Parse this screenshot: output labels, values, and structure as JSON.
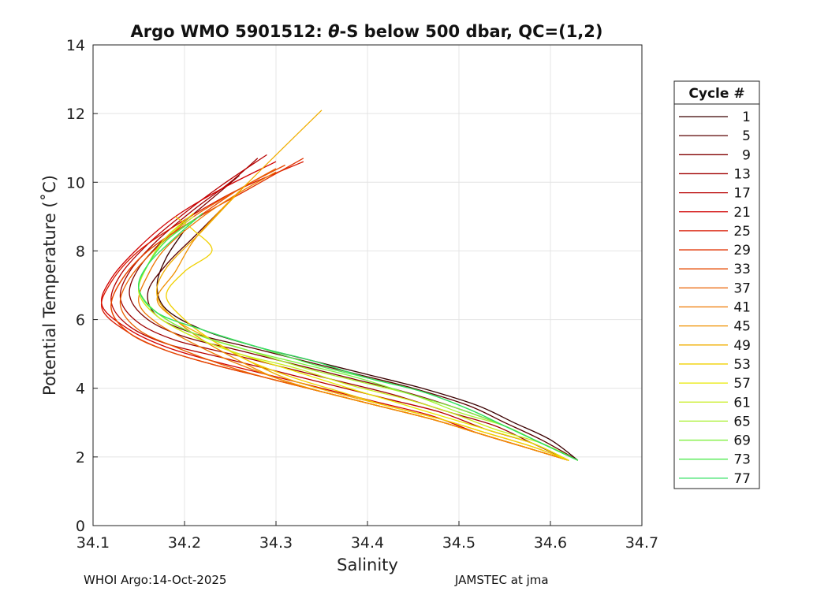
{
  "chart_data": {
    "type": "line",
    "title_prefix": "Argo WMO 5901512: ",
    "title_theta": "θ",
    "title_suffix": "-S below 500 dbar,  QC=(1,2)",
    "xlabel": "Salinity",
    "ylabel": "Potential Temperature (˚C)",
    "xlim": [
      34.1,
      34.7
    ],
    "ylim": [
      0,
      14
    ],
    "xticks": [
      "34.1",
      "34.2",
      "34.3",
      "34.4",
      "34.5",
      "34.6",
      "34.7"
    ],
    "yticks": [
      "0",
      "2",
      "4",
      "6",
      "8",
      "10",
      "12",
      "14"
    ],
    "grid": true,
    "legend": {
      "title": "Cycle #",
      "placement": "outside-right",
      "entries": [
        "1",
        "5",
        "9",
        "13",
        "17",
        "21",
        "25",
        "29",
        "33",
        "37",
        "41",
        "45",
        "49",
        "53",
        "57",
        "61",
        "65",
        "69",
        "73",
        "77"
      ],
      "colors": [
        "#3a0000",
        "#5a0000",
        "#800000",
        "#a00000",
        "#b80000",
        "#d10000",
        "#d81800",
        "#e03200",
        "#e64800",
        "#ea6000",
        "#ee7800",
        "#f09000",
        "#f0ae00",
        "#f0d000",
        "#e8e800",
        "#c8ee20",
        "#a8f030",
        "#80f040",
        "#50ea50",
        "#30e060"
      ]
    },
    "series": [
      {
        "name": "1",
        "s": [
          34.63,
          34.6,
          34.56,
          34.52,
          34.46,
          34.4,
          34.34,
          34.28,
          34.22,
          34.18,
          34.17,
          34.18,
          34.2
        ],
        "t": [
          1.9,
          2.5,
          3.0,
          3.5,
          4.0,
          4.4,
          4.8,
          5.2,
          5.7,
          6.3,
          7.0,
          7.8,
          8.6
        ]
      },
      {
        "name": "5",
        "s": [
          34.63,
          34.59,
          34.55,
          34.51,
          34.45,
          34.39,
          34.33,
          34.27,
          34.21,
          34.17,
          34.16,
          34.18,
          34.21,
          34.24
        ],
        "t": [
          1.9,
          2.5,
          3.0,
          3.5,
          4.0,
          4.4,
          4.8,
          5.2,
          5.6,
          6.1,
          6.8,
          7.6,
          8.4,
          9.2
        ]
      },
      {
        "name": "9",
        "s": [
          34.63,
          34.59,
          34.55,
          34.5,
          34.44,
          34.38,
          34.32,
          34.26,
          34.2,
          34.16,
          34.14,
          34.15,
          34.18,
          34.22,
          34.26
        ],
        "t": [
          1.9,
          2.4,
          2.9,
          3.4,
          3.9,
          4.3,
          4.7,
          5.1,
          5.5,
          6.0,
          6.7,
          7.5,
          8.4,
          9.3,
          10.2
        ]
      },
      {
        "name": "13",
        "s": [
          34.62,
          34.58,
          34.54,
          34.49,
          34.43,
          34.37,
          34.31,
          34.25,
          34.19,
          34.15,
          34.13,
          34.14,
          34.17,
          34.21,
          34.25,
          34.28
        ],
        "t": [
          1.9,
          2.4,
          2.9,
          3.3,
          3.8,
          4.2,
          4.6,
          5.0,
          5.4,
          5.9,
          6.6,
          7.4,
          8.3,
          9.2,
          10.0,
          10.7
        ]
      },
      {
        "name": "17",
        "s": [
          34.62,
          34.58,
          34.53,
          34.48,
          34.42,
          34.36,
          34.3,
          34.24,
          34.18,
          34.14,
          34.12,
          34.13,
          34.16,
          34.2,
          34.24,
          34.29
        ],
        "t": [
          1.9,
          2.4,
          2.8,
          3.3,
          3.7,
          4.1,
          4.5,
          4.9,
          5.3,
          5.8,
          6.5,
          7.3,
          8.2,
          9.1,
          9.9,
          10.8
        ]
      },
      {
        "name": "21",
        "s": [
          34.62,
          34.57,
          34.52,
          34.47,
          34.41,
          34.35,
          34.29,
          34.23,
          34.18,
          34.14,
          34.11,
          34.12,
          34.15,
          34.19,
          34.24,
          34.3
        ],
        "t": [
          1.9,
          2.3,
          2.7,
          3.2,
          3.6,
          4.0,
          4.4,
          4.8,
          5.2,
          5.7,
          6.4,
          7.2,
          8.1,
          9.0,
          9.8,
          10.6
        ]
      },
      {
        "name": "25",
        "s": [
          34.62,
          34.57,
          34.52,
          34.47,
          34.41,
          34.35,
          34.29,
          34.23,
          34.18,
          34.14,
          34.11,
          34.12,
          34.15,
          34.2,
          34.26,
          34.33
        ],
        "t": [
          1.9,
          2.3,
          2.7,
          3.1,
          3.5,
          3.9,
          4.3,
          4.7,
          5.1,
          5.6,
          6.3,
          7.1,
          8.0,
          8.9,
          9.8,
          10.6
        ]
      },
      {
        "name": "29",
        "s": [
          34.62,
          34.57,
          34.52,
          34.47,
          34.41,
          34.35,
          34.29,
          34.23,
          34.18,
          34.14,
          34.12,
          34.13,
          34.16,
          34.21,
          34.27,
          34.33
        ],
        "t": [
          1.9,
          2.3,
          2.7,
          3.1,
          3.5,
          3.9,
          4.3,
          4.7,
          5.1,
          5.6,
          6.3,
          7.1,
          8.0,
          8.9,
          9.8,
          10.7
        ]
      },
      {
        "name": "33",
        "s": [
          34.62,
          34.57,
          34.52,
          34.47,
          34.41,
          34.35,
          34.29,
          34.23,
          34.18,
          34.14,
          34.12,
          34.13,
          34.16,
          34.21,
          34.26,
          34.31
        ],
        "t": [
          1.9,
          2.3,
          2.7,
          3.1,
          3.5,
          3.9,
          4.3,
          4.7,
          5.1,
          5.6,
          6.3,
          7.1,
          8.0,
          8.9,
          9.8,
          10.5
        ]
      },
      {
        "name": "37",
        "s": [
          34.62,
          34.57,
          34.52,
          34.47,
          34.41,
          34.35,
          34.29,
          34.24,
          34.19,
          34.15,
          34.13,
          34.14,
          34.17,
          34.21,
          34.26,
          34.3
        ],
        "t": [
          1.9,
          2.3,
          2.7,
          3.1,
          3.5,
          3.9,
          4.3,
          4.7,
          5.2,
          5.7,
          6.4,
          7.2,
          8.1,
          9.0,
          9.8,
          10.4
        ]
      },
      {
        "name": "41",
        "s": [
          34.62,
          34.57,
          34.52,
          34.47,
          34.41,
          34.35,
          34.3,
          34.25,
          34.21,
          34.17,
          34.15,
          34.16,
          34.18,
          34.22,
          34.26,
          34.3
        ],
        "t": [
          1.9,
          2.3,
          2.7,
          3.1,
          3.5,
          3.9,
          4.3,
          4.8,
          5.3,
          5.9,
          6.5,
          7.3,
          8.1,
          9.0,
          9.7,
          10.3
        ]
      },
      {
        "name": "45",
        "s": [
          34.62,
          34.57,
          34.52,
          34.47,
          34.41,
          34.35,
          34.3,
          34.26,
          34.22,
          34.19,
          34.17,
          34.19,
          34.21,
          34.24,
          34.27
        ],
        "t": [
          1.9,
          2.3,
          2.7,
          3.1,
          3.5,
          3.9,
          4.3,
          4.8,
          5.4,
          6.0,
          6.6,
          7.4,
          8.3,
          9.2,
          10.0
        ]
      },
      {
        "name": "49",
        "s": [
          34.62,
          34.58,
          34.53,
          34.48,
          34.42,
          34.36,
          34.31,
          34.27,
          34.23,
          34.19,
          34.17,
          34.18,
          34.22,
          34.27,
          34.35
        ],
        "t": [
          1.9,
          2.3,
          2.7,
          3.1,
          3.5,
          3.9,
          4.3,
          4.8,
          5.4,
          6.0,
          6.7,
          7.5,
          8.6,
          10.0,
          12.1
        ]
      },
      {
        "name": "53",
        "s": [
          34.62,
          34.58,
          34.53,
          34.48,
          34.42,
          34.37,
          34.32,
          34.27,
          34.23,
          34.2,
          34.18,
          34.2,
          34.23,
          34.21,
          34.19
        ],
        "t": [
          1.9,
          2.3,
          2.7,
          3.1,
          3.5,
          3.9,
          4.3,
          4.8,
          5.4,
          6.0,
          6.7,
          7.4,
          8.0,
          8.6,
          9.0
        ]
      },
      {
        "name": "57",
        "s": [
          34.62,
          34.58,
          34.53,
          34.48,
          34.43,
          34.38,
          34.32,
          34.26,
          34.21,
          34.17,
          34.15,
          34.16,
          34.18,
          34.21
        ],
        "t": [
          1.9,
          2.4,
          2.8,
          3.2,
          3.6,
          4.0,
          4.5,
          5.0,
          5.5,
          6.1,
          6.8,
          7.6,
          8.4,
          9.1
        ]
      },
      {
        "name": "61",
        "s": [
          34.63,
          34.59,
          34.54,
          34.49,
          34.44,
          34.38,
          34.32,
          34.26,
          34.21,
          34.17,
          34.15,
          34.16,
          34.18,
          34.21
        ],
        "t": [
          1.9,
          2.4,
          2.8,
          3.3,
          3.7,
          4.1,
          4.6,
          5.0,
          5.5,
          6.1,
          6.8,
          7.6,
          8.4,
          9.0
        ]
      },
      {
        "name": "65",
        "s": [
          34.63,
          34.59,
          34.55,
          34.5,
          34.45,
          34.39,
          34.33,
          34.27,
          34.21,
          34.17,
          34.15,
          34.16,
          34.18,
          34.21
        ],
        "t": [
          1.9,
          2.4,
          2.9,
          3.3,
          3.8,
          4.2,
          4.6,
          5.1,
          5.6,
          6.2,
          6.9,
          7.6,
          8.3,
          8.9
        ]
      },
      {
        "name": "69",
        "s": [
          34.63,
          34.59,
          34.55,
          34.5,
          34.45,
          34.39,
          34.33,
          34.27,
          34.21,
          34.17,
          34.15,
          34.16,
          34.18,
          34.21
        ],
        "t": [
          1.9,
          2.4,
          2.9,
          3.4,
          3.8,
          4.3,
          4.7,
          5.1,
          5.6,
          6.2,
          6.9,
          7.6,
          8.3,
          8.9
        ]
      },
      {
        "name": "73",
        "s": [
          34.63,
          34.59,
          34.55,
          34.51,
          34.46,
          34.4,
          34.34,
          34.28,
          34.22,
          34.17,
          34.15,
          34.16,
          34.18,
          34.21
        ],
        "t": [
          1.9,
          2.4,
          2.9,
          3.4,
          3.9,
          4.3,
          4.7,
          5.2,
          5.7,
          6.2,
          6.9,
          7.6,
          8.3,
          8.9
        ]
      },
      {
        "name": "77",
        "s": [
          34.63,
          34.59,
          34.55,
          34.51,
          34.46,
          34.4,
          34.34,
          34.28,
          34.22,
          34.17,
          34.15,
          34.16,
          34.19,
          34.22
        ],
        "t": [
          1.9,
          2.4,
          2.9,
          3.4,
          3.9,
          4.3,
          4.8,
          5.2,
          5.7,
          6.2,
          6.9,
          7.6,
          8.4,
          9.1
        ]
      }
    ]
  },
  "footer": {
    "left": "WHOI Argo:14-Oct-2025",
    "right": "JAMSTEC at jma"
  }
}
